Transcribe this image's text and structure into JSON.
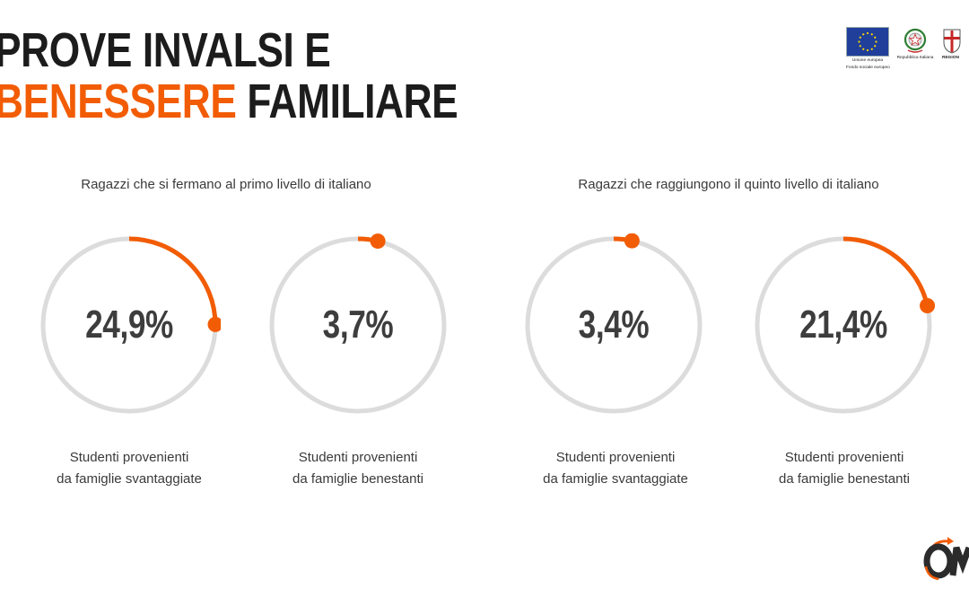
{
  "title": {
    "line1": "PROVE INVALSI E",
    "line2_accent": "BENESSERE",
    "line2_rest": " FAMILIARE"
  },
  "logos": {
    "eu_caption_line1": "Unione europea",
    "eu_caption_line2": "Fondo sociale europeo",
    "republic_caption": "Repubblica Italiana",
    "region_caption": "REGION"
  },
  "colors": {
    "accent": "#f25c05",
    "track": "#dcdcdc",
    "text": "#3d3d3d"
  },
  "chart_data": [
    {
      "type": "pie",
      "title": "Ragazzi che si fermano al primo livello di italiano",
      "series": [
        {
          "name": "Studenti provenienti da famiglie svantaggiate",
          "label_line1": "Studenti provenienti",
          "label_line2": "da famiglie svantaggiate",
          "value": 24.9,
          "display": "24,9%"
        },
        {
          "name": "Studenti provenienti da famiglie benestanti",
          "label_line1": "Studenti provenienti",
          "label_line2": "da famiglie benestanti",
          "value": 3.7,
          "display": "3,7%"
        }
      ]
    },
    {
      "type": "pie",
      "title": "Ragazzi che raggiungono il quinto livello di italiano",
      "series": [
        {
          "name": "Studenti provenienti da famiglie svantaggiate",
          "label_line1": "Studenti provenienti",
          "label_line2": "da famiglie svantaggiate",
          "value": 3.4,
          "display": "3,4%"
        },
        {
          "name": "Studenti provenienti da famiglie benestanti",
          "label_line1": "Studenti provenienti",
          "label_line2": "da famiglie benestanti",
          "value": 21.4,
          "display": "21,4%"
        }
      ]
    }
  ]
}
